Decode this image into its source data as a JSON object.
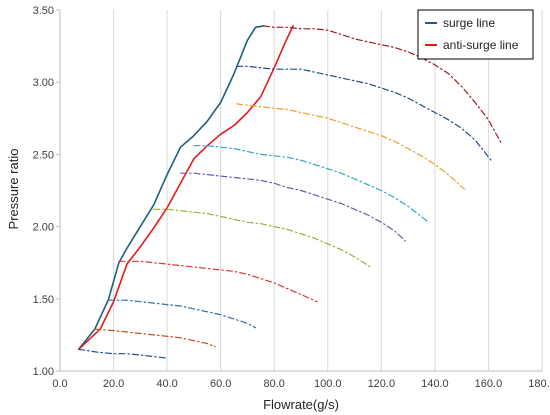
{
  "chart_data": {
    "type": "line",
    "title": "",
    "xlabel": "Flowrate(g/s)",
    "ylabel": "Pressure ratio",
    "xlim": [
      0,
      180
    ],
    "ylim": [
      1.0,
      3.5
    ],
    "grid": "x-major-vertical",
    "legend_position": "top-right",
    "x_ticks": [
      0,
      20,
      40,
      60,
      80,
      100,
      120,
      140,
      160,
      180
    ],
    "x_tick_labels": [
      "0.0",
      "20.0",
      "40.0",
      "60.0",
      "80.0",
      "100.0",
      "120.0",
      "140.0",
      "160.0",
      "180.0"
    ],
    "y_ticks": [
      1.0,
      1.5,
      2.0,
      2.5,
      3.0,
      3.5
    ],
    "y_tick_labels": [
      "1.00",
      "1.50",
      "2.00",
      "2.50",
      "3.00",
      "3.50"
    ],
    "series": [
      {
        "name": "surge line",
        "color": "#1f5f7a",
        "style": "solid",
        "x": [
          7,
          13,
          18,
          22,
          25,
          30,
          35,
          40,
          45,
          50,
          55,
          60,
          65,
          70,
          73,
          76
        ],
        "y": [
          1.15,
          1.29,
          1.49,
          1.75,
          1.85,
          2.0,
          2.15,
          2.36,
          2.55,
          2.63,
          2.73,
          2.86,
          3.06,
          3.29,
          3.38,
          3.39
        ]
      },
      {
        "name": "anti-surge line",
        "color": "#e51b1b",
        "style": "solid",
        "x": [
          7,
          15,
          20,
          25,
          30,
          35,
          40,
          45,
          50,
          55,
          60,
          65,
          70,
          75,
          80,
          84,
          87
        ],
        "y": [
          1.15,
          1.29,
          1.48,
          1.74,
          1.86,
          1.99,
          2.13,
          2.3,
          2.47,
          2.56,
          2.64,
          2.7,
          2.79,
          2.9,
          3.1,
          3.27,
          3.39
        ]
      },
      {
        "color": "#1f4f8a",
        "style": "dashdot",
        "x": [
          7,
          14,
          20,
          25,
          30,
          35,
          40
        ],
        "y": [
          1.15,
          1.13,
          1.12,
          1.12,
          1.11,
          1.1,
          1.09
        ]
      },
      {
        "color": "#c0501c",
        "style": "dashdot",
        "x": [
          13,
          20,
          25,
          30,
          35,
          40,
          45,
          50,
          55,
          58
        ],
        "y": [
          1.29,
          1.28,
          1.27,
          1.26,
          1.25,
          1.24,
          1.23,
          1.21,
          1.19,
          1.17
        ]
      },
      {
        "color": "#2f6fb0",
        "style": "dashdot",
        "x": [
          18,
          25,
          30,
          35,
          40,
          45,
          50,
          55,
          60,
          65,
          70,
          73
        ],
        "y": [
          1.49,
          1.49,
          1.48,
          1.47,
          1.46,
          1.45,
          1.43,
          1.41,
          1.39,
          1.36,
          1.33,
          1.3
        ]
      },
      {
        "color": "#d63a3a",
        "style": "dashdot",
        "x": [
          22,
          30,
          35,
          40,
          45,
          50,
          55,
          60,
          65,
          70,
          75,
          80,
          85,
          90,
          96
        ],
        "y": [
          1.76,
          1.76,
          1.75,
          1.74,
          1.73,
          1.72,
          1.71,
          1.7,
          1.69,
          1.67,
          1.64,
          1.61,
          1.57,
          1.53,
          1.48
        ]
      },
      {
        "color": "#9bb03a",
        "style": "dashdot",
        "x": [
          35,
          40,
          45,
          50,
          55,
          60,
          65,
          70,
          75,
          80,
          85,
          90,
          95,
          100,
          105,
          110,
          116
        ],
        "y": [
          2.12,
          2.12,
          2.11,
          2.1,
          2.09,
          2.07,
          2.05,
          2.03,
          2.02,
          2.0,
          1.98,
          1.95,
          1.92,
          1.88,
          1.84,
          1.79,
          1.72
        ]
      },
      {
        "color": "#6a5aaf",
        "style": "dashdot",
        "x": [
          45,
          50,
          55,
          60,
          65,
          70,
          75,
          80,
          85,
          90,
          95,
          100,
          105,
          110,
          115,
          120,
          125,
          129
        ],
        "y": [
          2.37,
          2.37,
          2.36,
          2.35,
          2.34,
          2.33,
          2.32,
          2.3,
          2.27,
          2.25,
          2.22,
          2.19,
          2.16,
          2.12,
          2.08,
          2.03,
          1.97,
          1.9
        ]
      },
      {
        "color": "#2ea7c6",
        "style": "dashdot",
        "x": [
          50,
          55,
          60,
          65,
          70,
          75,
          80,
          85,
          90,
          95,
          100,
          105,
          110,
          115,
          120,
          125,
          130,
          137
        ],
        "y": [
          2.56,
          2.56,
          2.55,
          2.54,
          2.52,
          2.5,
          2.49,
          2.48,
          2.46,
          2.43,
          2.4,
          2.37,
          2.33,
          2.29,
          2.25,
          2.2,
          2.14,
          2.04
        ]
      },
      {
        "color": "#f59a2a",
        "style": "dashdot",
        "x": [
          66,
          70,
          75,
          80,
          85,
          90,
          95,
          100,
          105,
          110,
          115,
          120,
          125,
          130,
          135,
          140,
          145,
          151
        ],
        "y": [
          2.85,
          2.84,
          2.83,
          2.82,
          2.81,
          2.79,
          2.77,
          2.75,
          2.72,
          2.69,
          2.66,
          2.63,
          2.59,
          2.54,
          2.49,
          2.43,
          2.36,
          2.26
        ]
      },
      {
        "color": "#1f4f8a",
        "style": "dashdot",
        "x": [
          66,
          70,
          75,
          80,
          85,
          90,
          95,
          100,
          105,
          110,
          115,
          120,
          125,
          130,
          135,
          140,
          145,
          150,
          155,
          161
        ],
        "y": [
          3.11,
          3.11,
          3.1,
          3.09,
          3.09,
          3.09,
          3.07,
          3.05,
          3.03,
          3.01,
          2.99,
          2.96,
          2.93,
          2.89,
          2.84,
          2.79,
          2.74,
          2.68,
          2.6,
          2.46
        ]
      },
      {
        "color": "#9b1b20",
        "style": "dashdot",
        "x": [
          76,
          80,
          85,
          90,
          95,
          100,
          105,
          110,
          115,
          120,
          125,
          130,
          135,
          140,
          145,
          150,
          155,
          160,
          165
        ],
        "y": [
          3.39,
          3.38,
          3.38,
          3.37,
          3.37,
          3.36,
          3.33,
          3.3,
          3.28,
          3.26,
          3.24,
          3.21,
          3.17,
          3.12,
          3.06,
          2.97,
          2.86,
          2.74,
          2.57
        ]
      }
    ]
  }
}
